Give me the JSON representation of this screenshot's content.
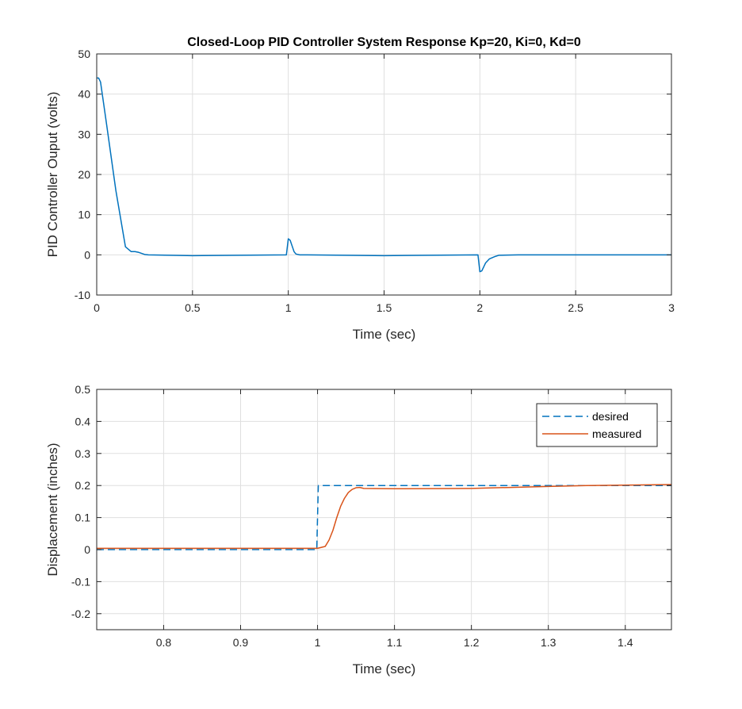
{
  "chart_data": [
    {
      "type": "line",
      "title": "Closed-Loop PID Controller System Response Kp=20, Ki=0, Kd=0",
      "xlabel": "Time (sec)",
      "ylabel": "PID Controller Ouput (volts)",
      "xlim": [
        0,
        3
      ],
      "ylim": [
        -10,
        50
      ],
      "xticks": [
        0,
        0.5,
        1,
        1.5,
        2,
        2.5,
        3
      ],
      "xtick_labels": [
        "0",
        "0.5",
        "1",
        "1.5",
        "2",
        "2.5",
        "3"
      ],
      "yticks": [
        -10,
        0,
        10,
        20,
        30,
        40,
        50
      ],
      "ytick_labels": [
        "-10",
        "0",
        "10",
        "20",
        "30",
        "40",
        "50"
      ],
      "grid": true,
      "series": [
        {
          "color": "#0072BD",
          "style": "solid",
          "x": [
            0,
            0.01,
            0.02,
            0.05,
            0.1,
            0.15,
            0.18,
            0.2,
            0.22,
            0.25,
            0.27,
            0.5,
            0.99,
            1.0,
            1.01,
            1.02,
            1.03,
            1.04,
            1.06,
            1.1,
            1.5,
            1.99,
            2.0,
            2.01,
            2.02,
            2.03,
            2.05,
            2.08,
            2.1,
            2.2,
            2.5,
            3.0
          ],
          "y": [
            44,
            44,
            43,
            33,
            16,
            2,
            0.8,
            0.8,
            0.6,
            0.1,
            0,
            -0.2,
            0,
            4,
            3.6,
            2.2,
            0.8,
            0.2,
            0,
            0,
            -0.2,
            0,
            -4.2,
            -4,
            -3,
            -2,
            -1,
            -0.4,
            -0.1,
            0,
            0,
            0
          ]
        }
      ]
    },
    {
      "type": "line",
      "title": "",
      "xlabel": "Time (sec)",
      "ylabel": "Displacement (inches)",
      "xlim": [
        0.713,
        1.46
      ],
      "ylim": [
        -0.25,
        0.5
      ],
      "xticks": [
        0.8,
        0.9,
        1,
        1.1,
        1.2,
        1.3,
        1.4
      ],
      "xtick_labels": [
        "0.8",
        "0.9",
        "1",
        "1.1",
        "1.2",
        "1.3",
        "1.4"
      ],
      "yticks": [
        -0.2,
        -0.1,
        0,
        0.1,
        0.2,
        0.3,
        0.4,
        0.5
      ],
      "ytick_labels": [
        "-0.2",
        "-0.1",
        "0",
        "0.1",
        "0.2",
        "0.3",
        "0.4",
        "0.5"
      ],
      "grid": true,
      "legend_position": "top-right",
      "series": [
        {
          "name": "desired",
          "color": "#0072BD",
          "style": "dashed",
          "x": [
            0.713,
            0.999,
            1.001,
            1.46
          ],
          "y": [
            0,
            0,
            0.2,
            0.2
          ]
        },
        {
          "name": "measured",
          "color": "#D95319",
          "style": "solid",
          "x": [
            0.713,
            0.8,
            0.9,
            1.0,
            1.01,
            1.015,
            1.02,
            1.025,
            1.03,
            1.035,
            1.04,
            1.045,
            1.05,
            1.055,
            1.06,
            1.1,
            1.2,
            1.3,
            1.35,
            1.46
          ],
          "y": [
            0.004,
            0.004,
            0.004,
            0.004,
            0.01,
            0.03,
            0.06,
            0.1,
            0.135,
            0.16,
            0.178,
            0.188,
            0.193,
            0.194,
            0.191,
            0.19,
            0.191,
            0.197,
            0.2,
            0.203
          ]
        }
      ]
    }
  ]
}
